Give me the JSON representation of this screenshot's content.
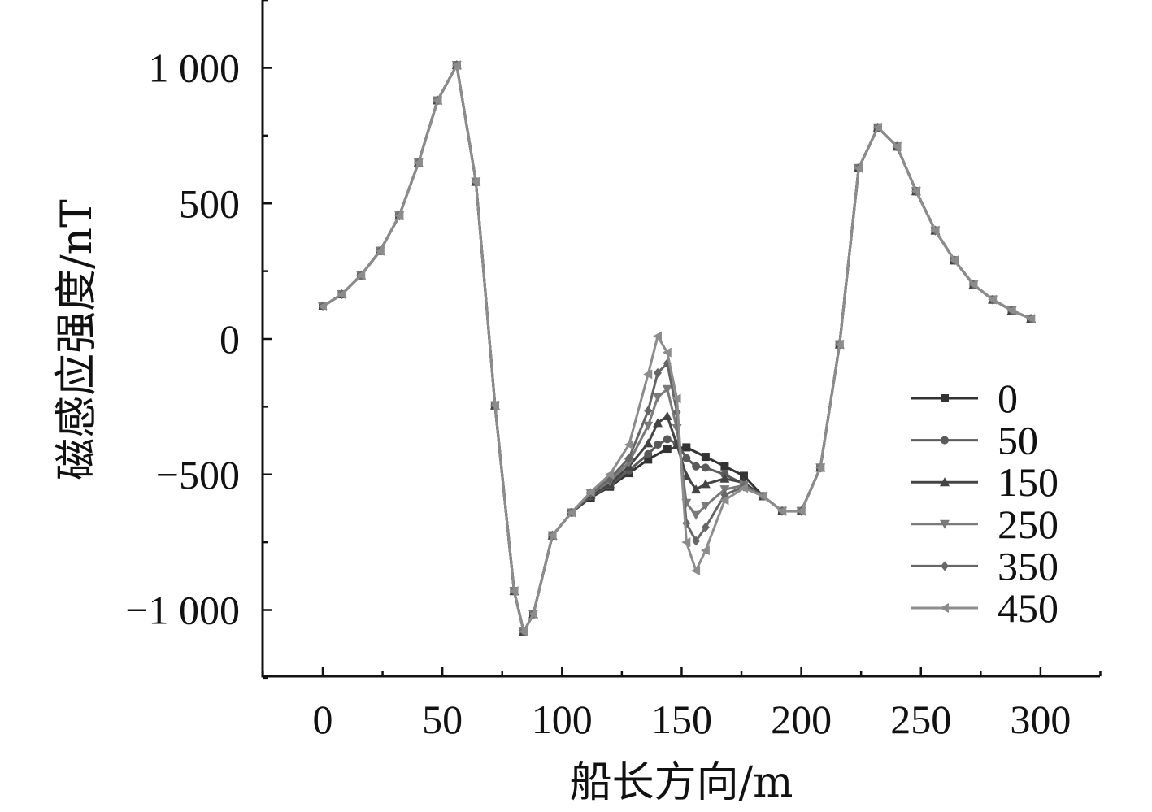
{
  "chart_data": {
    "type": "line",
    "xlabel": "船长方向/m",
    "ylabel": "磁感应强度/nT",
    "xlim": [
      -25,
      325
    ],
    "ylim": [
      -1250,
      1250
    ],
    "x_ticks": [
      0,
      50,
      100,
      150,
      200,
      250,
      300
    ],
    "x_tick_labels": [
      "0",
      "50",
      "100",
      "150",
      "200",
      "250",
      "300"
    ],
    "y_ticks": [
      1000,
      500,
      0,
      -500,
      -1000
    ],
    "y_tick_labels": [
      "1 000",
      "500",
      "0",
      "−500",
      "−1 000"
    ],
    "grid": false,
    "legend_position": "right",
    "series": [
      {
        "name": "0",
        "color": "#333333",
        "marker": "square",
        "x": [
          0,
          8,
          16,
          24,
          32,
          40,
          48,
          56,
          64,
          72,
          80,
          84,
          88,
          96,
          104,
          112,
          120,
          128,
          136,
          144,
          152,
          160,
          168,
          176,
          184,
          192,
          200,
          208,
          216,
          224,
          232,
          240,
          248,
          256,
          264,
          272,
          280,
          288,
          296
        ],
        "y": [
          120,
          165,
          235,
          325,
          455,
          650,
          880,
          1010,
          580,
          -245,
          -930,
          -1080,
          -1015,
          -725,
          -640,
          -585,
          -545,
          -495,
          -445,
          -405,
          -400,
          -435,
          -470,
          -505,
          -580,
          -635,
          -635,
          -475,
          -20,
          630,
          780,
          710,
          545,
          400,
          290,
          200,
          145,
          105,
          75
        ]
      },
      {
        "name": "50",
        "color": "#5a5a5a",
        "marker": "circle",
        "x": [
          0,
          8,
          16,
          24,
          32,
          40,
          48,
          56,
          64,
          72,
          80,
          84,
          88,
          96,
          104,
          112,
          120,
          128,
          136,
          140,
          144,
          148,
          152,
          156,
          160,
          168,
          176,
          184,
          192,
          200,
          208,
          216,
          224,
          232,
          240,
          248,
          256,
          264,
          272,
          280,
          288,
          296
        ],
        "y": [
          120,
          165,
          235,
          325,
          455,
          650,
          880,
          1010,
          580,
          -245,
          -930,
          -1080,
          -1015,
          -725,
          -640,
          -580,
          -540,
          -485,
          -425,
          -390,
          -370,
          -385,
          -440,
          -470,
          -475,
          -500,
          -535,
          -580,
          -635,
          -635,
          -475,
          -20,
          630,
          780,
          710,
          545,
          400,
          290,
          200,
          145,
          105,
          75
        ]
      },
      {
        "name": "150",
        "color": "#444444",
        "marker": "triangle-up",
        "x": [
          0,
          8,
          16,
          24,
          32,
          40,
          48,
          56,
          64,
          72,
          80,
          84,
          88,
          96,
          104,
          112,
          120,
          128,
          136,
          140,
          144,
          148,
          152,
          156,
          160,
          168,
          176,
          184,
          192,
          200,
          208,
          216,
          224,
          232,
          240,
          248,
          256,
          264,
          272,
          280,
          288,
          296
        ],
        "y": [
          120,
          165,
          235,
          325,
          455,
          650,
          880,
          1010,
          580,
          -245,
          -930,
          -1080,
          -1015,
          -725,
          -640,
          -575,
          -535,
          -470,
          -385,
          -310,
          -285,
          -390,
          -505,
          -555,
          -535,
          -515,
          -530,
          -580,
          -635,
          -635,
          -475,
          -20,
          630,
          780,
          710,
          545,
          400,
          290,
          200,
          145,
          105,
          75
        ]
      },
      {
        "name": "250",
        "color": "#7a7a7a",
        "marker": "triangle-down",
        "x": [
          0,
          8,
          16,
          24,
          32,
          40,
          48,
          56,
          64,
          72,
          80,
          84,
          88,
          96,
          104,
          112,
          120,
          128,
          136,
          140,
          144,
          148,
          152,
          156,
          160,
          168,
          176,
          184,
          192,
          200,
          208,
          216,
          224,
          232,
          240,
          248,
          256,
          264,
          272,
          280,
          288,
          296
        ],
        "y": [
          120,
          165,
          235,
          325,
          455,
          650,
          880,
          1010,
          580,
          -245,
          -930,
          -1080,
          -1015,
          -725,
          -640,
          -570,
          -525,
          -455,
          -320,
          -215,
          -185,
          -330,
          -605,
          -650,
          -615,
          -555,
          -540,
          -580,
          -635,
          -635,
          -475,
          -20,
          630,
          780,
          710,
          545,
          400,
          290,
          200,
          145,
          105,
          75
        ]
      },
      {
        "name": "350",
        "color": "#666666",
        "marker": "diamond",
        "x": [
          0,
          8,
          16,
          24,
          32,
          40,
          48,
          56,
          64,
          72,
          80,
          84,
          88,
          96,
          104,
          112,
          120,
          128,
          136,
          140,
          144,
          148,
          152,
          156,
          160,
          168,
          176,
          184,
          192,
          200,
          208,
          216,
          224,
          232,
          240,
          248,
          256,
          264,
          272,
          280,
          288,
          296
        ],
        "y": [
          120,
          165,
          235,
          325,
          455,
          650,
          880,
          1010,
          580,
          -245,
          -930,
          -1080,
          -1015,
          -725,
          -640,
          -568,
          -515,
          -440,
          -265,
          -125,
          -90,
          -270,
          -680,
          -745,
          -695,
          -575,
          -545,
          -580,
          -635,
          -635,
          -475,
          -20,
          630,
          780,
          710,
          545,
          400,
          290,
          200,
          145,
          105,
          75
        ]
      },
      {
        "name": "450",
        "color": "#8c8c8c",
        "marker": "triangle-left",
        "x": [
          0,
          8,
          16,
          24,
          32,
          40,
          48,
          56,
          64,
          72,
          80,
          84,
          88,
          96,
          104,
          112,
          120,
          128,
          136,
          140,
          144,
          148,
          152,
          156,
          160,
          168,
          176,
          184,
          192,
          200,
          208,
          216,
          224,
          232,
          240,
          248,
          256,
          264,
          272,
          280,
          288,
          296
        ],
        "y": [
          120,
          165,
          235,
          325,
          455,
          650,
          880,
          1010,
          580,
          -245,
          -930,
          -1080,
          -1015,
          -725,
          -640,
          -565,
          -500,
          -390,
          -130,
          10,
          -50,
          -220,
          -750,
          -855,
          -780,
          -595,
          -550,
          -580,
          -635,
          -635,
          -475,
          -20,
          630,
          780,
          710,
          545,
          400,
          290,
          200,
          145,
          105,
          75
        ]
      }
    ]
  }
}
